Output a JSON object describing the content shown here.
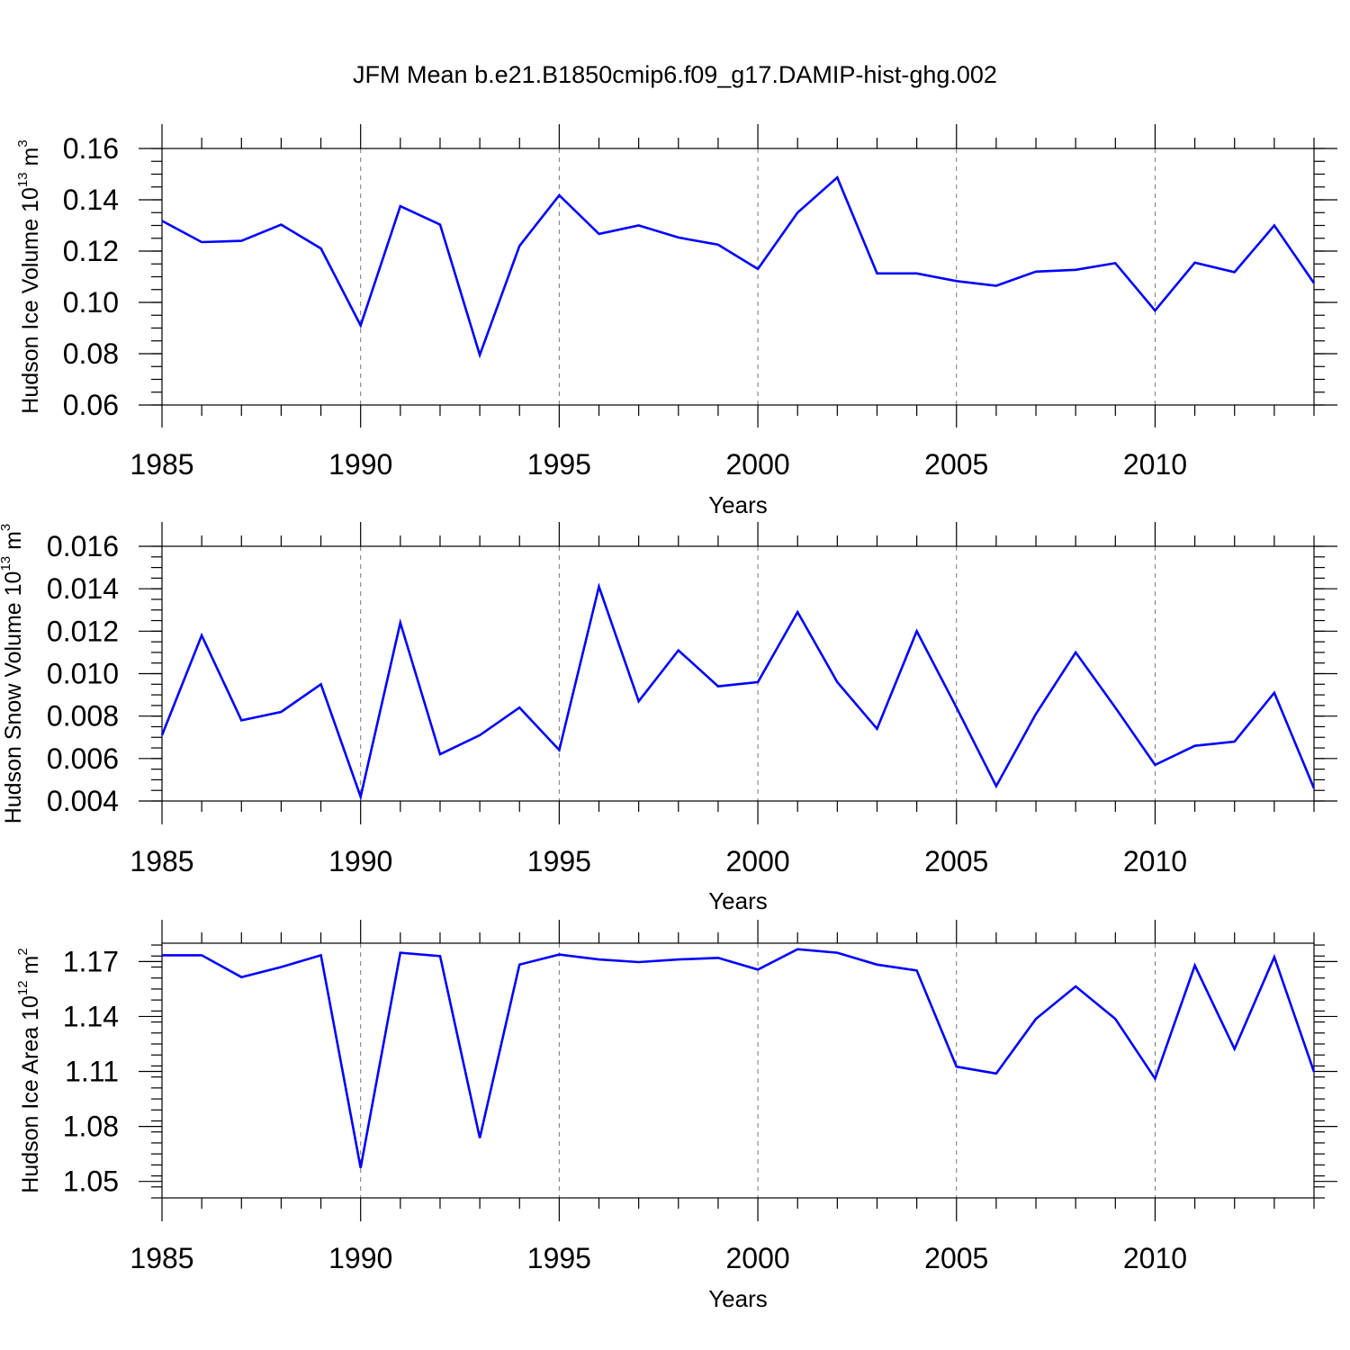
{
  "title": "JFM Mean b.e21.B1850cmip6.f09_g17.DAMIP-hist-ghg.002",
  "colors": {
    "line": "#0000ff",
    "grid": "#777777",
    "axis": "#000000"
  },
  "chart_data": [
    {
      "type": "line",
      "ylabel_main": "Hudson Ice Volume 10",
      "ylabel_exp": "13",
      "ylabel_unit": " m",
      "ylabel_unit_exp": "3",
      "xlabel": "Years",
      "xlim": [
        1985,
        2014
      ],
      "ylim": [
        0.06,
        0.16
      ],
      "xticks": [
        1985,
        1990,
        1995,
        2000,
        2005,
        2010
      ],
      "yticks": [
        0.06,
        0.08,
        0.1,
        0.12,
        0.14,
        0.16
      ],
      "ytick_labels": [
        "0.06",
        "0.08",
        "0.10",
        "0.12",
        "0.14",
        "0.16"
      ],
      "minor_ystep": 0.005,
      "x": [
        1985,
        1986,
        1987,
        1988,
        1989,
        1990,
        1991,
        1992,
        1993,
        1994,
        1995,
        1996,
        1997,
        1998,
        1999,
        2000,
        2001,
        2002,
        2003,
        2004,
        2005,
        2006,
        2007,
        2008,
        2009,
        2010,
        2011,
        2012,
        2013,
        2014
      ],
      "y": [
        0.1318,
        0.1235,
        0.124,
        0.1303,
        0.121,
        0.091,
        0.1375,
        0.1303,
        0.0795,
        0.122,
        0.1418,
        0.1267,
        0.13,
        0.1253,
        0.1225,
        0.113,
        0.135,
        0.1487,
        0.1113,
        0.1113,
        0.1083,
        0.1065,
        0.112,
        0.1127,
        0.1153,
        0.0968,
        0.1155,
        0.1118,
        0.13,
        0.1075
      ]
    },
    {
      "type": "line",
      "ylabel_main": "Hudson Snow Volume 10",
      "ylabel_exp": "13",
      "ylabel_unit": " m",
      "ylabel_unit_exp": "3",
      "xlabel": "Years",
      "xlim": [
        1985,
        2014
      ],
      "ylim": [
        0.004,
        0.016
      ],
      "xticks": [
        1985,
        1990,
        1995,
        2000,
        2005,
        2010
      ],
      "yticks": [
        0.004,
        0.006,
        0.008,
        0.01,
        0.012,
        0.014,
        0.016
      ],
      "ytick_labels": [
        "0.004",
        "0.006",
        "0.008",
        "0.010",
        "0.012",
        "0.014",
        "0.016"
      ],
      "minor_ystep": 0.0005,
      "x": [
        1985,
        1986,
        1987,
        1988,
        1989,
        1990,
        1991,
        1992,
        1993,
        1994,
        1995,
        1996,
        1997,
        1998,
        1999,
        2000,
        2001,
        2002,
        2003,
        2004,
        2005,
        2006,
        2007,
        2008,
        2009,
        2010,
        2011,
        2012,
        2013,
        2014
      ],
      "y": [
        0.0071,
        0.0118,
        0.0078,
        0.0082,
        0.0095,
        0.0042,
        0.0124,
        0.0062,
        0.0071,
        0.0084,
        0.0064,
        0.0141,
        0.0087,
        0.0111,
        0.0094,
        0.0096,
        0.0129,
        0.0096,
        0.0074,
        0.012,
        0.0084,
        0.0047,
        0.0081,
        0.011,
        0.0084,
        0.0057,
        0.0066,
        0.0068,
        0.0091,
        0.0046
      ]
    },
    {
      "type": "line",
      "ylabel_main": "Hudson Ice Area 10",
      "ylabel_exp": "12",
      "ylabel_unit": " m",
      "ylabel_unit_exp": "2",
      "xlabel": "Years",
      "xlim": [
        1985,
        2014
      ],
      "ylim": [
        1.041,
        1.18
      ],
      "xticks": [
        1985,
        1990,
        1995,
        2000,
        2005,
        2010
      ],
      "yticks": [
        1.05,
        1.08,
        1.11,
        1.14,
        1.17
      ],
      "ytick_labels": [
        "1.05",
        "1.08",
        "1.11",
        "1.14",
        "1.17"
      ],
      "minor_ystep": 0.006,
      "x": [
        1985,
        1986,
        1987,
        1988,
        1989,
        1990,
        1991,
        1992,
        1993,
        1994,
        1995,
        1996,
        1997,
        1998,
        1999,
        2000,
        2001,
        2002,
        2003,
        2004,
        2005,
        2006,
        2007,
        2008,
        2009,
        2010,
        2011,
        2012,
        2013,
        2014
      ],
      "y": [
        1.1734,
        1.1734,
        1.1615,
        1.167,
        1.1734,
        1.0574,
        1.1748,
        1.173,
        1.0737,
        1.1683,
        1.1738,
        1.1711,
        1.1697,
        1.1711,
        1.172,
        1.1656,
        1.1767,
        1.1748,
        1.1683,
        1.1651,
        1.1126,
        1.1089,
        1.1387,
        1.1564,
        1.1387,
        1.1061,
        1.1678,
        1.1223,
        1.1725,
        1.1098
      ]
    }
  ]
}
